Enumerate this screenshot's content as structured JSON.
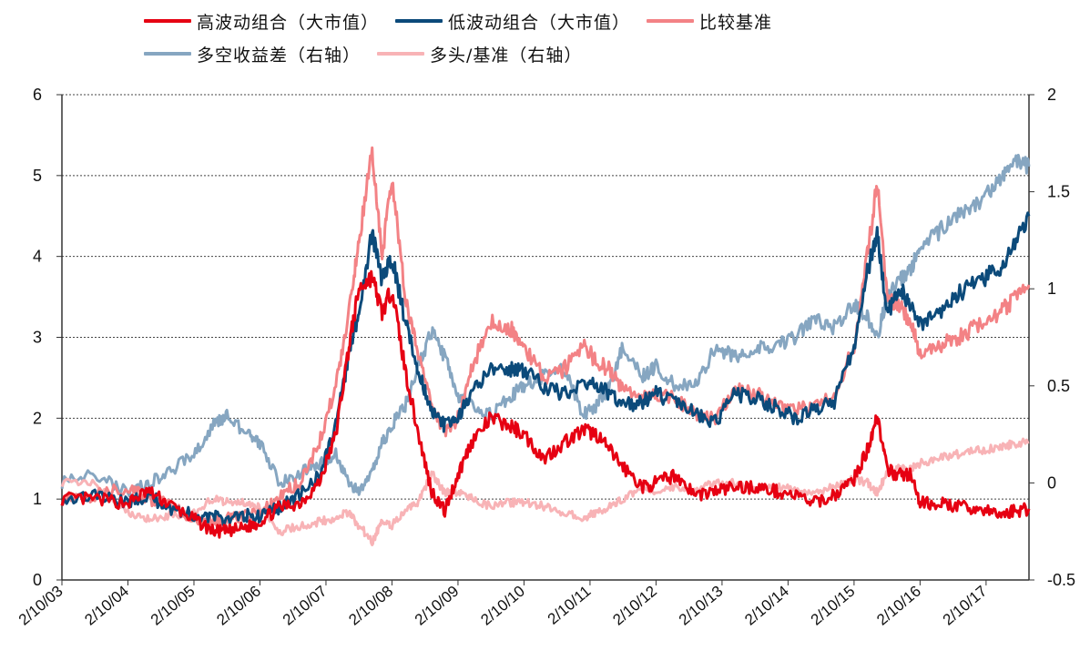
{
  "chart_data": {
    "type": "line",
    "title": "",
    "x_tick_labels": [
      "2/10/03",
      "2/10/04",
      "2/10/05",
      "2/10/06",
      "2/10/07",
      "2/10/08",
      "2/10/09",
      "2/10/10",
      "2/10/11",
      "2/10/12",
      "2/10/13",
      "2/10/14",
      "2/10/15",
      "2/10/16",
      "2/10/17"
    ],
    "x_range_years": [
      2003.0,
      2017.65
    ],
    "left_axis": {
      "ylim": [
        0,
        6
      ],
      "ticks": [
        "0",
        "1",
        "2",
        "3",
        "4",
        "5",
        "6"
      ],
      "gridlines": true
    },
    "right_axis": {
      "ylim": [
        -0.5,
        2
      ],
      "ticks": [
        "-0.5",
        "0",
        "0.5",
        "1",
        "1.5",
        "2"
      ]
    },
    "legend": [
      {
        "name": "高波动组合（大市值）",
        "color": "#e60012",
        "series_index": 0
      },
      {
        "name": "低波动组合（大市值）",
        "color": "#0b4a7a",
        "series_index": 1
      },
      {
        "name": "比较基准",
        "color": "#f38285",
        "series_index": 2
      },
      {
        "name": "多空收益差（右轴）",
        "color": "#86a6c1",
        "series_index": 3
      },
      {
        "name": "多头/基准（右轴）",
        "color": "#f8b3b6",
        "series_index": 4
      }
    ],
    "series": [
      {
        "name": "高波动组合（大市值）",
        "axis": "left",
        "color": "#e60012",
        "x": [
          2003.0,
          2003.5,
          2004.0,
          2004.3,
          2004.6,
          2005.0,
          2005.3,
          2005.5,
          2005.8,
          2006.0,
          2006.3,
          2006.6,
          2006.9,
          2007.15,
          2007.35,
          2007.5,
          2007.7,
          2007.85,
          2008.0,
          2008.2,
          2008.4,
          2008.6,
          2008.8,
          2009.0,
          2009.2,
          2009.5,
          2009.8,
          2010.0,
          2010.3,
          2010.6,
          2010.9,
          2011.1,
          2011.3,
          2011.5,
          2011.8,
          2012.0,
          2012.3,
          2012.6,
          2012.9,
          2013.2,
          2013.5,
          2013.8,
          2014.1,
          2014.4,
          2014.7,
          2015.0,
          2015.2,
          2015.35,
          2015.5,
          2015.7,
          2015.85,
          2016.0,
          2016.3,
          2016.6,
          2016.9,
          2017.2,
          2017.4,
          2017.65
        ],
        "values": [
          1.0,
          1.0,
          0.95,
          1.1,
          0.95,
          0.75,
          0.6,
          0.6,
          0.65,
          0.72,
          0.9,
          0.95,
          1.2,
          1.8,
          2.9,
          3.6,
          3.75,
          3.3,
          3.6,
          2.6,
          1.8,
          1.1,
          0.85,
          1.3,
          1.7,
          2.0,
          1.9,
          1.8,
          1.5,
          1.7,
          1.85,
          1.8,
          1.6,
          1.4,
          1.15,
          1.2,
          1.3,
          1.05,
          1.1,
          1.15,
          1.15,
          1.1,
          1.05,
          0.95,
          1.05,
          1.25,
          1.6,
          2.05,
          1.35,
          1.3,
          1.3,
          0.95,
          0.95,
          0.9,
          0.88,
          0.8,
          0.85,
          0.88
        ]
      },
      {
        "name": "低波动组合（大市值）",
        "axis": "left",
        "color": "#0b4a7a",
        "x": [
          2003.0,
          2003.5,
          2004.0,
          2004.3,
          2004.6,
          2005.0,
          2005.3,
          2005.5,
          2005.8,
          2006.0,
          2006.3,
          2006.6,
          2006.9,
          2007.15,
          2007.35,
          2007.5,
          2007.7,
          2007.85,
          2008.0,
          2008.2,
          2008.4,
          2008.6,
          2008.8,
          2009.0,
          2009.2,
          2009.5,
          2009.8,
          2010.0,
          2010.3,
          2010.6,
          2010.9,
          2011.1,
          2011.3,
          2011.5,
          2011.8,
          2012.0,
          2012.3,
          2012.6,
          2012.9,
          2013.2,
          2013.5,
          2013.8,
          2014.1,
          2014.4,
          2014.7,
          2015.0,
          2015.2,
          2015.35,
          2015.5,
          2015.7,
          2015.85,
          2016.0,
          2016.3,
          2016.6,
          2016.9,
          2017.2,
          2017.4,
          2017.65
        ],
        "values": [
          1.0,
          1.05,
          0.95,
          1.05,
          0.9,
          0.8,
          0.78,
          0.75,
          0.8,
          0.78,
          0.9,
          1.05,
          1.3,
          1.9,
          2.8,
          3.3,
          4.3,
          3.7,
          4.0,
          3.2,
          2.6,
          2.1,
          1.9,
          2.0,
          2.3,
          2.6,
          2.6,
          2.6,
          2.4,
          2.3,
          2.45,
          2.4,
          2.3,
          2.15,
          2.2,
          2.3,
          2.2,
          2.05,
          1.95,
          2.3,
          2.25,
          2.15,
          2.0,
          2.1,
          2.2,
          2.9,
          3.8,
          4.3,
          3.3,
          3.6,
          3.4,
          3.15,
          3.3,
          3.55,
          3.7,
          3.85,
          4.1,
          4.5
        ]
      },
      {
        "name": "比较基准",
        "axis": "left",
        "color": "#f38285",
        "x": [
          2003.0,
          2003.5,
          2004.0,
          2004.3,
          2004.6,
          2005.0,
          2005.3,
          2005.5,
          2005.8,
          2006.0,
          2006.3,
          2006.6,
          2006.9,
          2007.15,
          2007.35,
          2007.5,
          2007.7,
          2007.85,
          2008.0,
          2008.2,
          2008.4,
          2008.6,
          2008.8,
          2009.0,
          2009.2,
          2009.5,
          2009.8,
          2010.0,
          2010.3,
          2010.6,
          2010.9,
          2011.1,
          2011.3,
          2011.5,
          2011.8,
          2012.0,
          2012.3,
          2012.6,
          2012.9,
          2013.2,
          2013.5,
          2013.8,
          2014.1,
          2014.4,
          2014.7,
          2015.0,
          2015.2,
          2015.35,
          2015.5,
          2015.7,
          2015.85,
          2016.0,
          2016.3,
          2016.6,
          2016.9,
          2017.2,
          2017.4,
          2017.65
        ],
        "values": [
          1.0,
          1.05,
          1.15,
          1.0,
          0.95,
          0.75,
          0.72,
          0.75,
          0.8,
          0.8,
          1.05,
          1.2,
          1.7,
          2.4,
          3.3,
          4.2,
          5.3,
          4.0,
          5.0,
          3.5,
          2.8,
          2.2,
          1.8,
          2.0,
          2.6,
          3.2,
          3.1,
          2.9,
          2.5,
          2.6,
          2.9,
          2.7,
          2.6,
          2.35,
          2.3,
          2.3,
          2.25,
          2.05,
          2.0,
          2.35,
          2.3,
          2.2,
          2.1,
          2.15,
          2.3,
          2.9,
          4.0,
          4.9,
          3.5,
          3.4,
          3.2,
          2.8,
          2.9,
          3.0,
          3.15,
          3.3,
          3.45,
          3.65
        ]
      },
      {
        "name": "多空收益差（右轴）",
        "axis": "right",
        "color": "#86a6c1",
        "x": [
          2003.0,
          2003.5,
          2004.0,
          2004.3,
          2004.6,
          2005.0,
          2005.3,
          2005.5,
          2005.8,
          2006.0,
          2006.3,
          2006.6,
          2006.9,
          2007.15,
          2007.35,
          2007.5,
          2007.7,
          2007.85,
          2008.0,
          2008.2,
          2008.4,
          2008.6,
          2008.8,
          2009.0,
          2009.2,
          2009.5,
          2009.8,
          2010.0,
          2010.3,
          2010.6,
          2010.9,
          2011.1,
          2011.3,
          2011.5,
          2011.8,
          2012.0,
          2012.3,
          2012.6,
          2012.9,
          2013.2,
          2013.5,
          2013.8,
          2014.1,
          2014.4,
          2014.7,
          2015.0,
          2015.2,
          2015.35,
          2015.5,
          2015.7,
          2015.85,
          2016.0,
          2016.3,
          2016.6,
          2016.9,
          2017.2,
          2017.4,
          2017.65
        ],
        "values": [
          0.0,
          0.05,
          -0.05,
          0.0,
          0.05,
          0.15,
          0.3,
          0.35,
          0.25,
          0.2,
          0.0,
          0.05,
          0.1,
          0.15,
          0.0,
          -0.05,
          0.05,
          0.2,
          0.3,
          0.4,
          0.6,
          0.78,
          0.65,
          0.45,
          0.4,
          0.35,
          0.45,
          0.5,
          0.55,
          0.6,
          0.35,
          0.4,
          0.5,
          0.7,
          0.55,
          0.6,
          0.5,
          0.5,
          0.7,
          0.65,
          0.7,
          0.7,
          0.75,
          0.85,
          0.8,
          0.92,
          0.85,
          0.75,
          0.95,
          1.05,
          1.1,
          1.2,
          1.3,
          1.4,
          1.45,
          1.55,
          1.65,
          1.63
        ]
      },
      {
        "name": "多头/基准（右轴）",
        "axis": "right",
        "color": "#f8b3b6",
        "x": [
          2003.0,
          2003.5,
          2004.0,
          2004.3,
          2004.6,
          2005.0,
          2005.3,
          2005.5,
          2005.8,
          2006.0,
          2006.3,
          2006.6,
          2006.9,
          2007.15,
          2007.35,
          2007.5,
          2007.7,
          2007.85,
          2008.0,
          2008.2,
          2008.4,
          2008.6,
          2008.8,
          2009.0,
          2009.2,
          2009.5,
          2009.8,
          2010.0,
          2010.3,
          2010.6,
          2010.9,
          2011.1,
          2011.3,
          2011.5,
          2011.8,
          2012.0,
          2012.3,
          2012.6,
          2012.9,
          2013.2,
          2013.5,
          2013.8,
          2014.1,
          2014.4,
          2014.7,
          2015.0,
          2015.2,
          2015.35,
          2015.5,
          2015.7,
          2015.85,
          2016.0,
          2016.3,
          2016.6,
          2016.9,
          2017.2,
          2017.4,
          2017.65
        ],
        "values": [
          0.0,
          0.0,
          -0.15,
          -0.18,
          -0.17,
          -0.15,
          -0.08,
          -0.1,
          -0.1,
          -0.12,
          -0.25,
          -0.22,
          -0.2,
          -0.18,
          -0.15,
          -0.22,
          -0.3,
          -0.2,
          -0.22,
          -0.15,
          -0.1,
          0.05,
          -0.05,
          -0.05,
          -0.08,
          -0.12,
          -0.1,
          -0.1,
          -0.12,
          -0.15,
          -0.18,
          -0.15,
          -0.12,
          -0.08,
          -0.02,
          -0.05,
          -0.02,
          -0.03,
          0.0,
          0.0,
          -0.02,
          -0.02,
          -0.03,
          -0.05,
          -0.02,
          0.02,
          0.0,
          -0.05,
          0.05,
          0.08,
          0.07,
          0.1,
          0.13,
          0.15,
          0.17,
          0.18,
          0.2,
          0.21
        ]
      }
    ]
  }
}
